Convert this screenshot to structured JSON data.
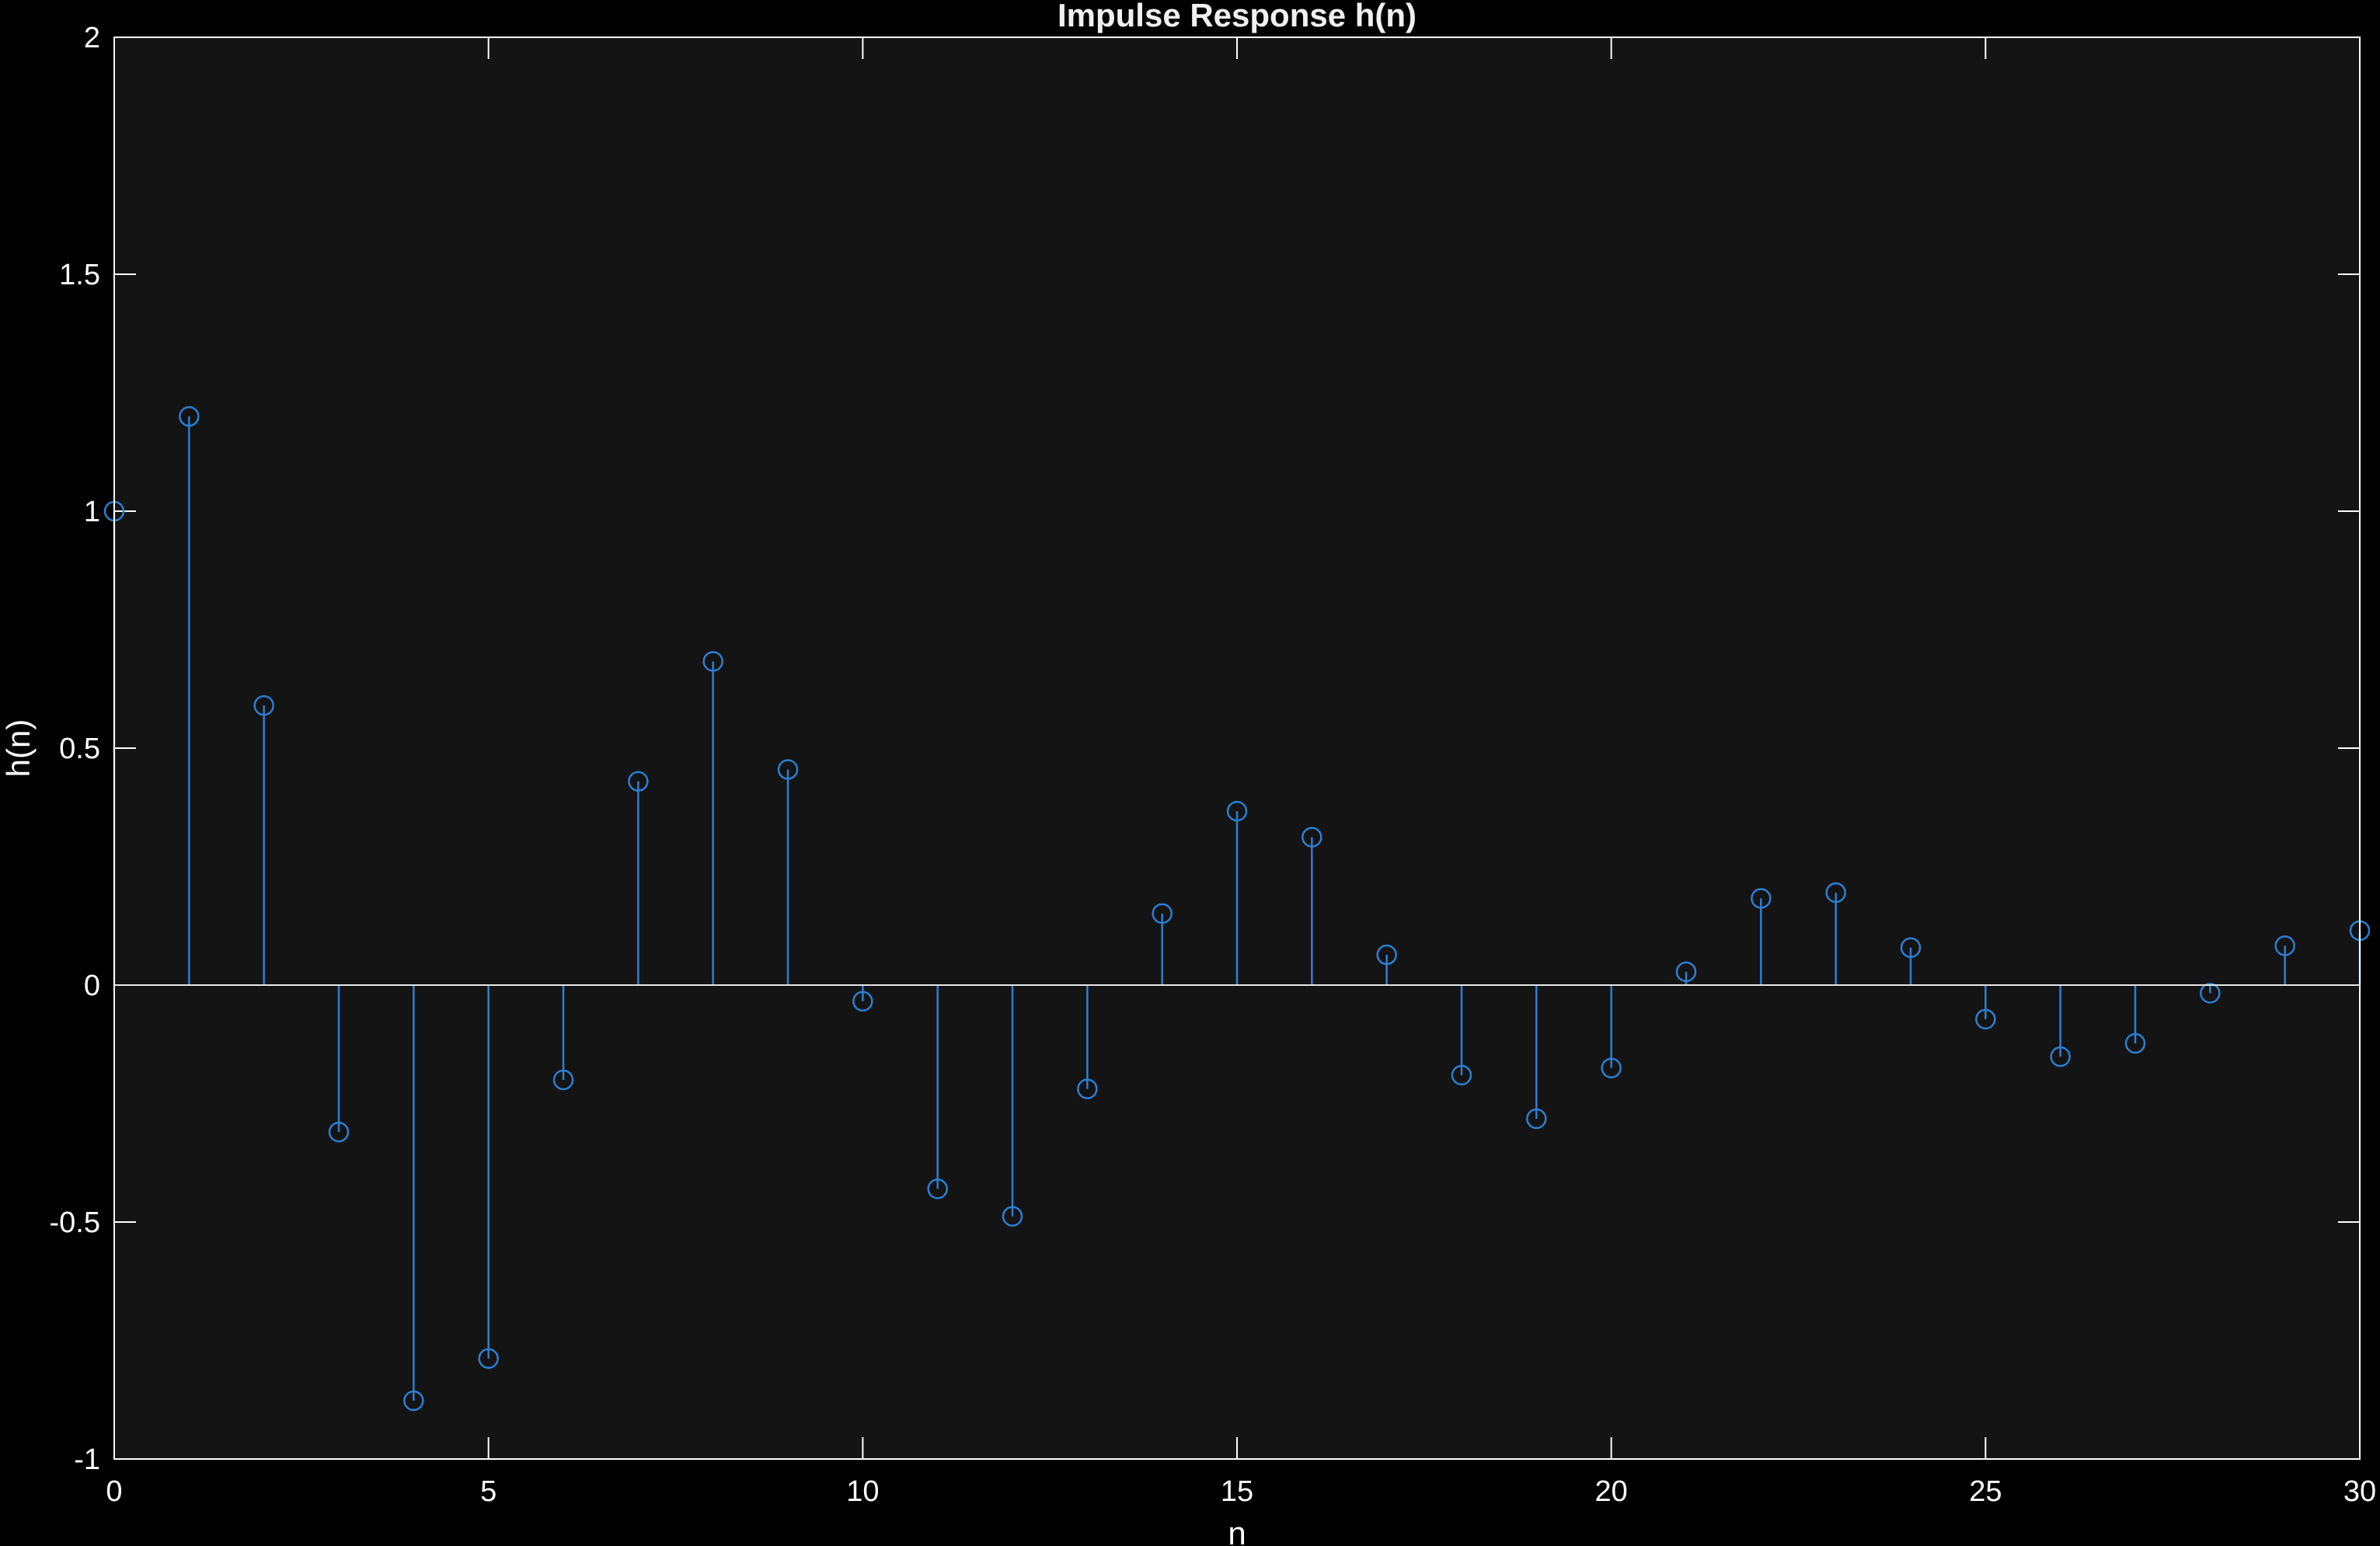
{
  "chart_data": {
    "type": "stem",
    "title": "Impulse Response h(n)",
    "xlabel": "n",
    "ylabel": "h(n)",
    "xlim": [
      0,
      30
    ],
    "ylim": [
      -1,
      2
    ],
    "xticks": [
      0,
      5,
      10,
      15,
      20,
      25,
      30
    ],
    "yticks": [
      -1,
      -0.5,
      0,
      0.5,
      1,
      1.5,
      2
    ],
    "xtick_labels": [
      "0",
      "5",
      "10",
      "15",
      "20",
      "25",
      "30"
    ],
    "ytick_labels": [
      "-1",
      "-0.5",
      "0",
      "0.5",
      "1",
      "1.5",
      "2"
    ],
    "grid": false,
    "background_color": "#000000",
    "axes_color": "#141414",
    "axis_line_color": "#ffffff",
    "stem_color": "#2b7fd4",
    "series": [
      {
        "x": [
          0,
          1,
          2,
          3,
          4,
          5,
          6,
          7,
          8,
          9,
          10,
          11,
          12,
          13,
          14,
          15,
          16,
          17,
          18,
          19,
          20,
          21,
          22,
          23,
          24,
          25,
          26,
          27,
          28,
          29,
          30
        ],
        "values": [
          1.0,
          1.2,
          0.59,
          -0.31,
          -0.877,
          -0.788,
          -0.2,
          0.43,
          0.683,
          0.455,
          -0.034,
          -0.43,
          -0.488,
          -0.219,
          0.151,
          0.367,
          0.312,
          0.064,
          -0.19,
          -0.282,
          -0.175,
          0.028,
          0.183,
          0.195,
          0.079,
          -0.072,
          -0.151,
          -0.123,
          -0.017,
          0.083,
          0.115
        ]
      }
    ]
  }
}
